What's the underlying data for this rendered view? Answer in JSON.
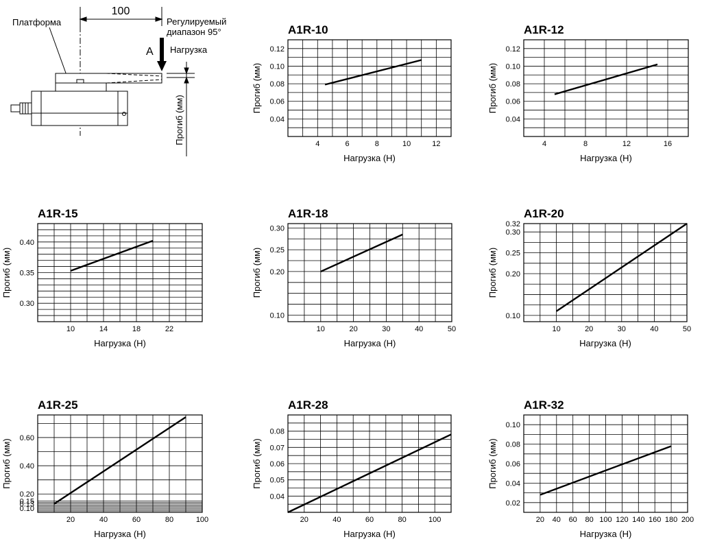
{
  "diagram": {
    "platform_label": "Платформа",
    "dimension_label": "100",
    "range_label_line1": "Регулируемый",
    "range_label_line2": "диапазон 95°",
    "point_label": "A",
    "load_label": "Нагрузка",
    "deflection_label": "Прогиб (мм)"
  },
  "chart_data": [
    {
      "id": "a1r-10",
      "type": "line",
      "title": "A1R-10",
      "xlabel": "Нагрузка (Н)",
      "ylabel": "Прогиб (мм)",
      "xlim": [
        2,
        13
      ],
      "ylim": [
        0.02,
        0.13
      ],
      "xticks": [
        {
          "v": 4,
          "t": "4"
        },
        {
          "v": 6,
          "t": "6"
        },
        {
          "v": 8,
          "t": "8"
        },
        {
          "v": 10,
          "t": "10"
        },
        {
          "v": 12,
          "t": "12"
        }
      ],
      "yticks": [
        {
          "v": 0.04,
          "t": "0.04"
        },
        {
          "v": 0.06,
          "t": "0.06"
        },
        {
          "v": 0.08,
          "t": "0.08"
        },
        {
          "v": 0.1,
          "t": "0.10"
        },
        {
          "v": 0.12,
          "t": "0.12"
        }
      ],
      "xgrid": [
        2,
        3,
        4,
        5,
        6,
        7,
        8,
        9,
        10,
        11,
        12,
        13
      ],
      "ygrid": [
        0.02,
        0.03,
        0.04,
        0.05,
        0.06,
        0.07,
        0.08,
        0.09,
        0.1,
        0.11,
        0.12,
        0.13
      ],
      "series": [
        {
          "name": "A1R-10",
          "x": [
            4.5,
            11
          ],
          "y": [
            0.079,
            0.107
          ]
        }
      ]
    },
    {
      "id": "a1r-12",
      "type": "line",
      "title": "A1R-12",
      "xlabel": "Нагрузка (Н)",
      "ylabel": "Прогиб (мм)",
      "xlim": [
        2,
        18
      ],
      "ylim": [
        0.02,
        0.13
      ],
      "xticks": [
        {
          "v": 4,
          "t": "4"
        },
        {
          "v": 8,
          "t": "8"
        },
        {
          "v": 12,
          "t": "12"
        },
        {
          "v": 16,
          "t": "16"
        }
      ],
      "yticks": [
        {
          "v": 0.04,
          "t": "0.04"
        },
        {
          "v": 0.06,
          "t": "0.06"
        },
        {
          "v": 0.08,
          "t": "0.08"
        },
        {
          "v": 0.1,
          "t": "0.10"
        },
        {
          "v": 0.12,
          "t": "0.12"
        }
      ],
      "xgrid": [
        2,
        4,
        6,
        8,
        10,
        12,
        14,
        16,
        18
      ],
      "ygrid": [
        0.02,
        0.03,
        0.04,
        0.05,
        0.06,
        0.07,
        0.08,
        0.09,
        0.1,
        0.11,
        0.12,
        0.13
      ],
      "series": [
        {
          "name": "A1R-12",
          "x": [
            5,
            15
          ],
          "y": [
            0.068,
            0.102
          ]
        }
      ]
    },
    {
      "id": "a1r-15",
      "type": "line",
      "title": "A1R-15",
      "xlabel": "Нагрузка (Н)",
      "ylabel": "Прогиб (мм)",
      "xlim": [
        6,
        26
      ],
      "ylim": [
        0.27,
        0.43
      ],
      "xticks": [
        {
          "v": 10,
          "t": "10"
        },
        {
          "v": 14,
          "t": "14"
        },
        {
          "v": 18,
          "t": "18"
        },
        {
          "v": 22,
          "t": "22"
        }
      ],
      "yticks": [
        {
          "v": 0.3,
          "t": "0.30"
        },
        {
          "v": 0.35,
          "t": "0.35"
        },
        {
          "v": 0.4,
          "t": "0.40"
        }
      ],
      "xgrid": [
        6,
        8,
        10,
        12,
        14,
        16,
        18,
        20,
        22,
        24,
        26
      ],
      "ygrid": [
        0.27,
        0.28,
        0.29,
        0.3,
        0.31,
        0.32,
        0.33,
        0.34,
        0.35,
        0.36,
        0.37,
        0.38,
        0.39,
        0.4,
        0.41,
        0.42,
        0.43
      ],
      "series": [
        {
          "name": "A1R-15",
          "x": [
            10,
            20
          ],
          "y": [
            0.353,
            0.402
          ]
        }
      ]
    },
    {
      "id": "a1r-18",
      "type": "line",
      "title": "A1R-18",
      "xlabel": "Нагрузка (Н)",
      "ylabel": "Прогиб (мм)",
      "xlim": [
        0,
        50
      ],
      "ylim": [
        0.085,
        0.31
      ],
      "xticks": [
        {
          "v": 10,
          "t": "10"
        },
        {
          "v": 20,
          "t": "20"
        },
        {
          "v": 30,
          "t": "30"
        },
        {
          "v": 40,
          "t": "40"
        },
        {
          "v": 50,
          "t": "50"
        }
      ],
      "yticks": [
        {
          "v": 0.1,
          "t": "0.10"
        },
        {
          "v": 0.2,
          "t": "0.20"
        },
        {
          "v": 0.25,
          "t": "0.25"
        },
        {
          "v": 0.3,
          "t": "0.30"
        }
      ],
      "xgrid": [
        0,
        5,
        10,
        15,
        20,
        25,
        30,
        35,
        40,
        45,
        50
      ],
      "ygrid": [
        0.085,
        0.1,
        0.125,
        0.15,
        0.175,
        0.2,
        0.225,
        0.25,
        0.275,
        0.3
      ],
      "series": [
        {
          "name": "A1R-18",
          "x": [
            10,
            35
          ],
          "y": [
            0.2,
            0.285
          ]
        }
      ]
    },
    {
      "id": "a1r-20",
      "type": "line",
      "title": "A1R-20",
      "xlabel": "Нагрузка (Н)",
      "ylabel": "Прогиб (мм)",
      "xlim": [
        0,
        50
      ],
      "ylim": [
        0.085,
        0.32
      ],
      "xticks": [
        {
          "v": 10,
          "t": "10"
        },
        {
          "v": 20,
          "t": "20"
        },
        {
          "v": 30,
          "t": "30"
        },
        {
          "v": 40,
          "t": "40"
        },
        {
          "v": 50,
          "t": "50"
        }
      ],
      "yticks": [
        {
          "v": 0.1,
          "t": "0.10"
        },
        {
          "v": 0.2,
          "t": "0.20"
        },
        {
          "v": 0.25,
          "t": "0.25"
        },
        {
          "v": 0.3,
          "t": "0.30"
        },
        {
          "v": 0.32,
          "t": "0.32"
        }
      ],
      "xgrid": [
        0,
        5,
        10,
        15,
        20,
        25,
        30,
        35,
        40,
        45,
        50
      ],
      "ygrid": [
        0.085,
        0.1,
        0.125,
        0.15,
        0.175,
        0.2,
        0.225,
        0.25,
        0.275,
        0.3,
        0.32
      ],
      "series": [
        {
          "name": "A1R-20",
          "x": [
            10,
            50
          ],
          "y": [
            0.11,
            0.32
          ]
        }
      ]
    },
    {
      "id": "a1r-25",
      "type": "line",
      "title": "A1R-25",
      "xlabel": "Нагрузка (Н)",
      "ylabel": "Прогиб (мм)",
      "xlim": [
        0,
        100
      ],
      "ylim": [
        0.07,
        0.76
      ],
      "xticks": [
        {
          "v": 20,
          "t": "20"
        },
        {
          "v": 40,
          "t": "40"
        },
        {
          "v": 60,
          "t": "60"
        },
        {
          "v": 80,
          "t": "80"
        },
        {
          "v": 100,
          "t": "100"
        }
      ],
      "yticks": [
        {
          "v": 0.1,
          "t": "0.10"
        },
        {
          "v": 0.13,
          "t": "0.13"
        },
        {
          "v": 0.15,
          "t": "0.15"
        },
        {
          "v": 0.2,
          "t": "0.20"
        },
        {
          "v": 0.4,
          "t": "0.40"
        },
        {
          "v": 0.6,
          "t": "0.60"
        }
      ],
      "xgrid": [
        0,
        10,
        20,
        30,
        40,
        50,
        60,
        70,
        80,
        90,
        100
      ],
      "ygrid": [
        0.07,
        0.08,
        0.09,
        0.1,
        0.11,
        0.12,
        0.13,
        0.14,
        0.15,
        0.2,
        0.3,
        0.4,
        0.5,
        0.6,
        0.7
      ],
      "series": [
        {
          "name": "A1R-25",
          "x": [
            10,
            90
          ],
          "y": [
            0.13,
            0.745
          ]
        }
      ]
    },
    {
      "id": "a1r-28",
      "type": "line",
      "title": "A1R-28",
      "xlabel": "Нагрузка (Н)",
      "ylabel": "Прогиб (мм)",
      "xlim": [
        10,
        110
      ],
      "ylim": [
        0.03,
        0.09
      ],
      "xticks": [
        {
          "v": 20,
          "t": "20"
        },
        {
          "v": 40,
          "t": "40"
        },
        {
          "v": 60,
          "t": "60"
        },
        {
          "v": 80,
          "t": "80"
        },
        {
          "v": 100,
          "t": "100"
        }
      ],
      "yticks": [
        {
          "v": 0.04,
          "t": "0.04"
        },
        {
          "v": 0.05,
          "t": "0.05"
        },
        {
          "v": 0.06,
          "t": "0.06"
        },
        {
          "v": 0.07,
          "t": "0.07"
        },
        {
          "v": 0.08,
          "t": "0.08"
        }
      ],
      "xgrid": [
        10,
        20,
        30,
        40,
        50,
        60,
        70,
        80,
        90,
        100,
        110
      ],
      "ygrid": [
        0.03,
        0.035,
        0.04,
        0.045,
        0.05,
        0.055,
        0.06,
        0.065,
        0.07,
        0.075,
        0.08,
        0.085,
        0.09
      ],
      "series": [
        {
          "name": "A1R-28",
          "x": [
            10,
            110
          ],
          "y": [
            0.03,
            0.078
          ]
        }
      ]
    },
    {
      "id": "a1r-32",
      "type": "line",
      "title": "A1R-32",
      "xlabel": "Нагрузка (Н)",
      "ylabel": "Прогиб (мм)",
      "xlim": [
        0,
        200
      ],
      "ylim": [
        0.01,
        0.11
      ],
      "xticks": [
        {
          "v": 20,
          "t": "20"
        },
        {
          "v": 40,
          "t": "40"
        },
        {
          "v": 60,
          "t": "60"
        },
        {
          "v": 80,
          "t": "80"
        },
        {
          "v": 100,
          "t": "100"
        },
        {
          "v": 120,
          "t": "120"
        },
        {
          "v": 140,
          "t": "140"
        },
        {
          "v": 160,
          "t": "160"
        },
        {
          "v": 180,
          "t": "180"
        },
        {
          "v": 200,
          "t": "200"
        }
      ],
      "yticks": [
        {
          "v": 0.02,
          "t": "0.02"
        },
        {
          "v": 0.04,
          "t": "0.04"
        },
        {
          "v": 0.06,
          "t": "0.06"
        },
        {
          "v": 0.08,
          "t": "0.08"
        },
        {
          "v": 0.1,
          "t": "0.10"
        }
      ],
      "xgrid": [
        0,
        20,
        40,
        60,
        80,
        100,
        120,
        140,
        160,
        180,
        200
      ],
      "ygrid": [
        0.01,
        0.02,
        0.03,
        0.04,
        0.05,
        0.06,
        0.07,
        0.08,
        0.09,
        0.1,
        0.11
      ],
      "series": [
        {
          "name": "A1R-32",
          "x": [
            20,
            180
          ],
          "y": [
            0.028,
            0.078
          ]
        }
      ]
    }
  ]
}
